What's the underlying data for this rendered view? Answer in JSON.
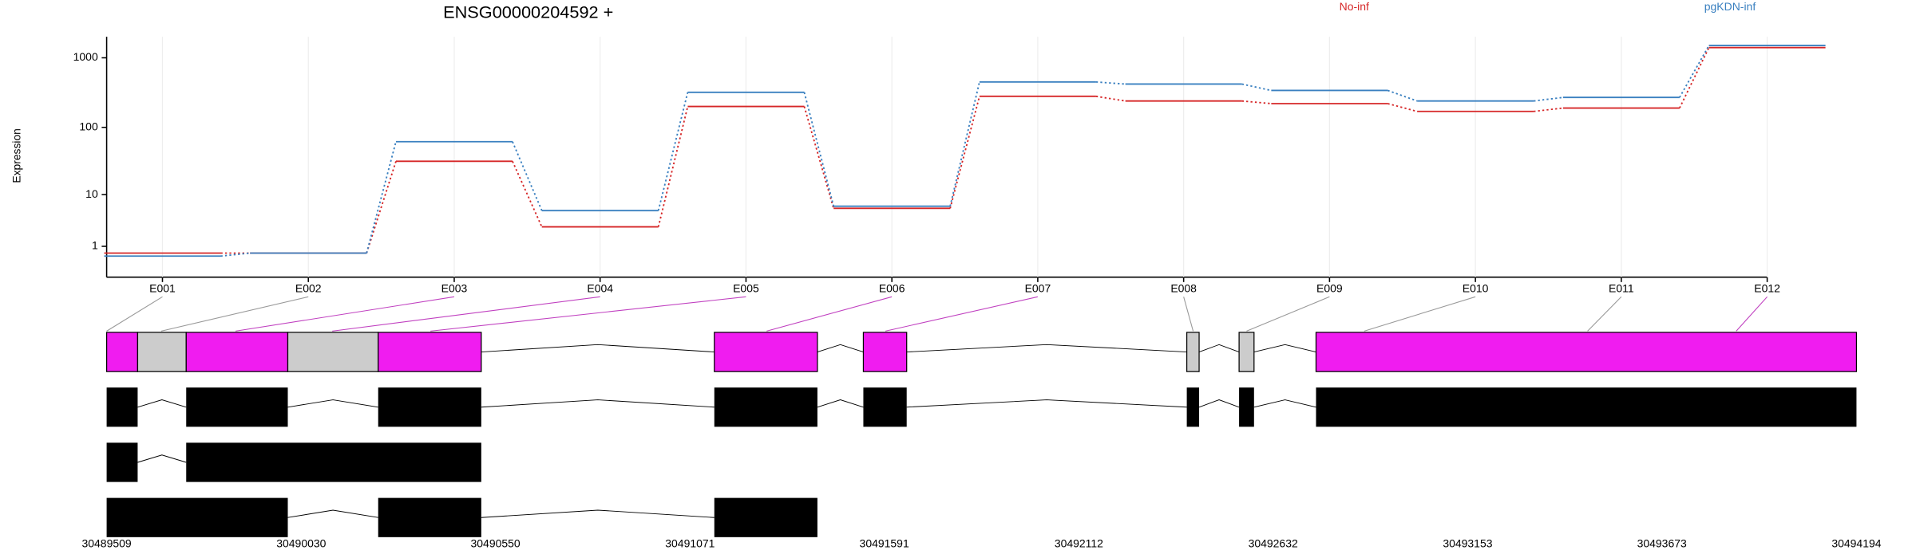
{
  "chart_data": {
    "type": "line",
    "title": "ENSG00000204592 +",
    "ylabel": "Expression",
    "yscale": "log1p",
    "ylim": [
      0,
      2000
    ],
    "yticks": [
      1,
      10,
      100,
      1000
    ],
    "grid": true,
    "legend": "top-right",
    "categories": [
      "E001",
      "E002",
      "E003",
      "E004",
      "E005",
      "E006",
      "E007",
      "E008",
      "E009",
      "E010",
      "E011",
      "E012"
    ],
    "series": [
      {
        "name": "No-inf",
        "color": "#d62728",
        "values": [
          0.6,
          0.6,
          32,
          2.8,
          200,
          6,
          280,
          240,
          220,
          170,
          190,
          1400
        ]
      },
      {
        "name": "pgKDN-inf",
        "color": "#3a80c0",
        "values": [
          0.45,
          0.6,
          62,
          5.5,
          320,
          6.5,
          450,
          420,
          340,
          240,
          270,
          1500
        ]
      }
    ],
    "bin_starts": [
      30489509,
      30489655,
      30489854,
      30490113,
      30490376,
      30491276,
      30491594,
      30492418,
      30492561,
      30492876,
      30493474,
      30493872
    ],
    "connector_colors": [
      "#999999",
      "#999999",
      "#c040c0",
      "#c040c0",
      "#c040c0",
      "#c040c0",
      "#c040c0",
      "#999999",
      "#999999",
      "#999999",
      "#999999",
      "#c040c0"
    ],
    "xlim": [
      30489509,
      30494194
    ],
    "xticks": [
      30489509,
      30490030,
      30490550,
      30491071,
      30491591,
      30492112,
      30492632,
      30493153,
      30493673,
      30494194
    ],
    "exon_bins": [
      {
        "start": 30489509,
        "end": 30489592,
        "color": "#f01cf0"
      },
      {
        "start": 30489592,
        "end": 30489722,
        "color": "#cccccc"
      },
      {
        "start": 30489722,
        "end": 30489994,
        "color": "#f01cf0"
      },
      {
        "start": 30489994,
        "end": 30490236,
        "color": "#cccccc"
      },
      {
        "start": 30490236,
        "end": 30490512,
        "color": "#f01cf0"
      },
      {
        "start": 30491136,
        "end": 30491412,
        "color": "#f01cf0"
      },
      {
        "start": 30491535,
        "end": 30491651,
        "color": "#f01cf0"
      },
      {
        "start": 30492401,
        "end": 30492434,
        "color": "#cccccc"
      },
      {
        "start": 30492541,
        "end": 30492581,
        "color": "#cccccc"
      },
      {
        "start": 30492747,
        "end": 30494194,
        "color": "#f01cf0"
      }
    ],
    "transcripts": [
      [
        [
          30489509,
          30489592
        ],
        [
          30489722,
          30489994
        ],
        [
          30490236,
          30490512
        ],
        [
          30491136,
          30491412
        ],
        [
          30491535,
          30491651
        ],
        [
          30492401,
          30492434
        ],
        [
          30492541,
          30492581
        ],
        [
          30492747,
          30494194
        ]
      ],
      [
        [
          30489509,
          30489592
        ],
        [
          30489722,
          30490512
        ]
      ],
      [
        [
          30489509,
          30489994
        ],
        [
          30490236,
          30490512
        ],
        [
          30491136,
          30491412
        ]
      ]
    ]
  }
}
